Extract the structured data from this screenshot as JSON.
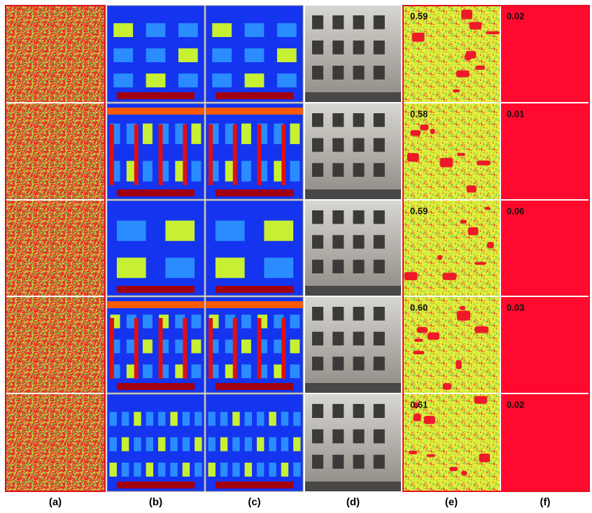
{
  "columns": [
    "(a)",
    "(b)",
    "(c)",
    "(d)",
    "(e)",
    "(f)"
  ],
  "rows": [
    {
      "score_e": "0.59",
      "score_f": "0.02"
    },
    {
      "score_e": "0.58",
      "score_f": "0.01"
    },
    {
      "score_e": "0.59",
      "score_f": "0.06"
    },
    {
      "score_e": "0.60",
      "score_f": "0.03"
    },
    {
      "score_e": "0.61",
      "score_f": "0.02"
    }
  ]
}
